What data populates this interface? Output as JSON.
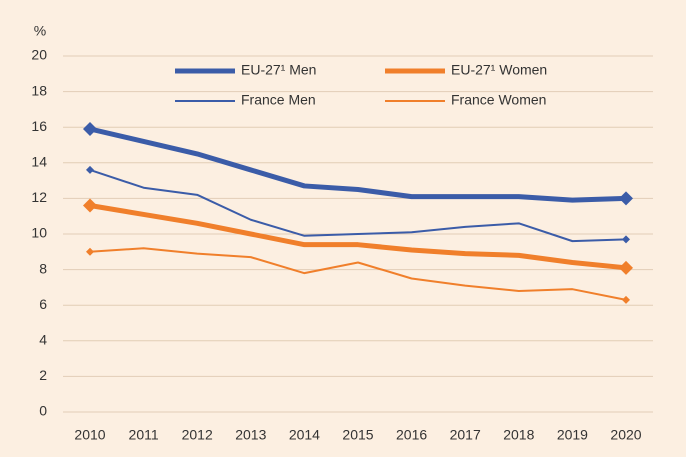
{
  "chart_data": {
    "type": "line",
    "y_unit": "%",
    "categories": [
      "2010",
      "2011",
      "2012",
      "2013",
      "2014",
      "2015",
      "2016",
      "2017",
      "2018",
      "2019",
      "2020"
    ],
    "series": [
      {
        "name": "EU-27¹ Men",
        "color": "#3b5ca8",
        "width": 5,
        "values": [
          15.9,
          15.2,
          14.5,
          13.6,
          12.7,
          12.5,
          12.1,
          12.1,
          12.1,
          11.9,
          12.0
        ]
      },
      {
        "name": "EU-27¹ Women",
        "color": "#f07f2b",
        "width": 5,
        "values": [
          11.6,
          11.1,
          10.6,
          10.0,
          9.4,
          9.4,
          9.1,
          8.9,
          8.8,
          8.4,
          8.1
        ]
      },
      {
        "name": "France Men",
        "color": "#3b5ca8",
        "width": 2,
        "values": [
          13.6,
          12.6,
          12.2,
          10.8,
          9.9,
          10.0,
          10.1,
          10.4,
          10.6,
          9.6,
          9.7
        ]
      },
      {
        "name": "France Women",
        "color": "#f07f2b",
        "width": 2,
        "values": [
          9.0,
          9.2,
          8.9,
          8.7,
          7.8,
          8.4,
          7.5,
          7.1,
          6.8,
          6.9,
          6.3
        ]
      }
    ],
    "ylim": [
      0,
      20
    ],
    "yticks": [
      0,
      2,
      4,
      6,
      8,
      10,
      12,
      14,
      16,
      18,
      20
    ],
    "grid": true,
    "legend": "top"
  }
}
